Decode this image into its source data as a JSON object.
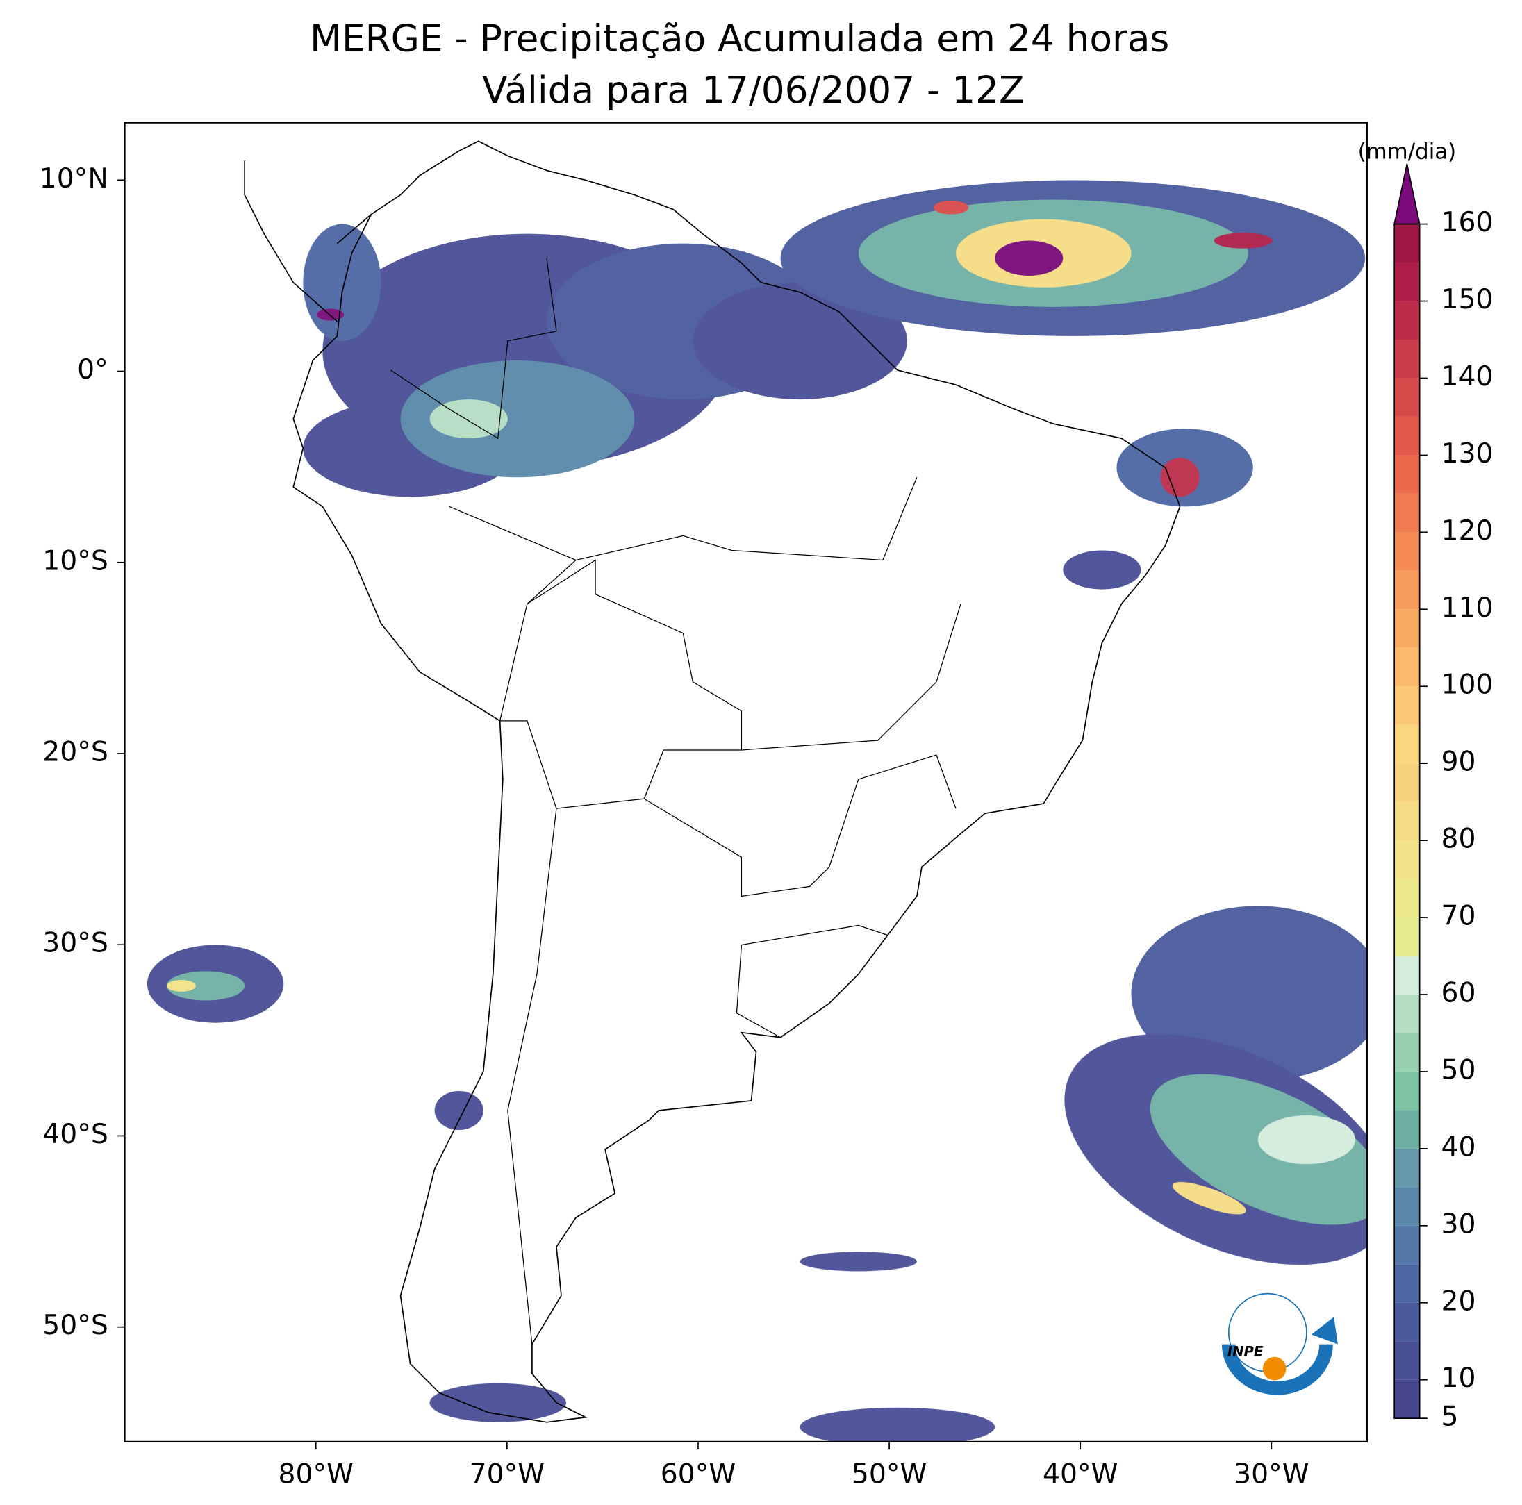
{
  "chart_data": {
    "type": "map",
    "title": "MERGE - Precipitação Acumulada em 24 horas",
    "subtitle": "Válida para 17/06/2007 - 12Z",
    "xlim": [
      -90,
      -25
    ],
    "ylim": [
      -56,
      13
    ],
    "xticks": [
      {
        "value": -80,
        "label": "80°W"
      },
      {
        "value": -70,
        "label": "70°W"
      },
      {
        "value": -60,
        "label": "60°W"
      },
      {
        "value": -50,
        "label": "50°W"
      },
      {
        "value": -40,
        "label": "40°W"
      },
      {
        "value": -30,
        "label": "30°W"
      }
    ],
    "yticks": [
      {
        "value": 10,
        "label": "10°N"
      },
      {
        "value": 0,
        "label": "0°"
      },
      {
        "value": -10,
        "label": "10°S"
      },
      {
        "value": -20,
        "label": "20°S"
      },
      {
        "value": -30,
        "label": "30°S"
      },
      {
        "value": -40,
        "label": "40°S"
      },
      {
        "value": -50,
        "label": "50°S"
      }
    ],
    "colorbar": {
      "label": "(mm/dia)",
      "lim": [
        5,
        160
      ],
      "ticks": [
        5,
        10,
        20,
        30,
        40,
        50,
        60,
        70,
        80,
        90,
        100,
        110,
        120,
        130,
        140,
        150,
        160
      ],
      "levels": [
        5,
        10,
        15,
        20,
        25,
        30,
        35,
        40,
        45,
        50,
        55,
        60,
        65,
        70,
        75,
        80,
        85,
        90,
        95,
        100,
        105,
        110,
        115,
        120,
        125,
        130,
        135,
        140,
        145,
        150,
        155,
        160
      ],
      "colors": [
        "#46468f",
        "#484f95",
        "#4a5a9c",
        "#4d67a3",
        "#5277a8",
        "#5a88aa",
        "#6599aa",
        "#6fb0a5",
        "#7cc3a4",
        "#98d1b0",
        "#b5dec3",
        "#d3ecdc",
        "#e4ec8e",
        "#ece98a",
        "#f2e388",
        "#f5dc84",
        "#f8d37e",
        "#fad67e",
        "#fbc873",
        "#fbba6a",
        "#f9ab62",
        "#f79b5a",
        "#f48b55",
        "#f07b50",
        "#ec6a4c",
        "#e35a4a",
        "#d84a4a",
        "#cc3b4a",
        "#bd2d4a",
        "#ad1f48",
        "#9e1546"
      ],
      "extend_color": "#7a0a7a"
    },
    "logo": "INPE"
  }
}
